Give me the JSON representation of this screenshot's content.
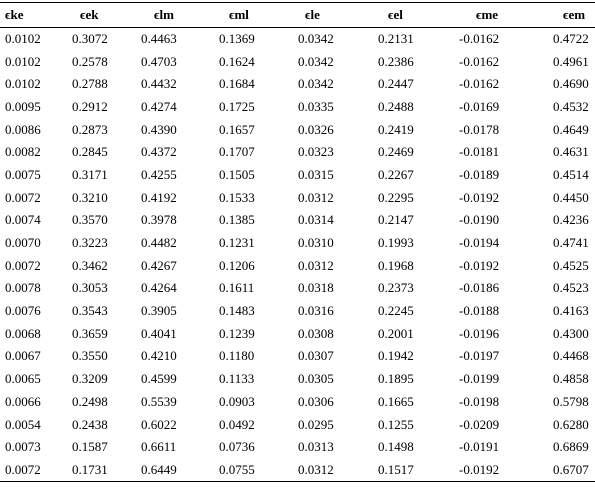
{
  "table": {
    "header": [
      "ϵke",
      "ϵek",
      "ϵlm",
      "ϵml",
      "ϵle",
      "ϵel",
      "ϵme",
      "ϵem"
    ],
    "rows": [
      [
        "0.0102",
        "0.3072",
        "0.4463",
        "0.1369",
        "0.0342",
        "0.2131",
        "-0.0162",
        "0.4722"
      ],
      [
        "0.0102",
        "0.2578",
        "0.4703",
        "0.1624",
        "0.0342",
        "0.2386",
        "-0.0162",
        "0.4961"
      ],
      [
        "0.0102",
        "0.2788",
        "0.4432",
        "0.1684",
        "0.0342",
        "0.2447",
        "-0.0162",
        "0.4690"
      ],
      [
        "0.0095",
        "0.2912",
        "0.4274",
        "0.1725",
        "0.0335",
        "0.2488",
        "-0.0169",
        "0.4532"
      ],
      [
        "0.0086",
        "0.2873",
        "0.4390",
        "0.1657",
        "0.0326",
        "0.2419",
        "-0.0178",
        "0.4649"
      ],
      [
        "0.0082",
        "0.2845",
        "0.4372",
        "0.1707",
        "0.0323",
        "0.2469",
        "-0.0181",
        "0.4631"
      ],
      [
        "0.0075",
        "0.3171",
        "0.4255",
        "0.1505",
        "0.0315",
        "0.2267",
        "-0.0189",
        "0.4514"
      ],
      [
        "0.0072",
        "0.3210",
        "0.4192",
        "0.1533",
        "0.0312",
        "0.2295",
        "-0.0192",
        "0.4450"
      ],
      [
        "0.0074",
        "0.3570",
        "0.3978",
        "0.1385",
        "0.0314",
        "0.2147",
        "-0.0190",
        "0.4236"
      ],
      [
        "0.0070",
        "0.3223",
        "0.4482",
        "0.1231",
        "0.0310",
        "0.1993",
        "-0.0194",
        "0.4741"
      ],
      [
        "0.0072",
        "0.3462",
        "0.4267",
        "0.1206",
        "0.0312",
        "0.1968",
        "-0.0192",
        "0.4525"
      ],
      [
        "0.0078",
        "0.3053",
        "0.4264",
        "0.1611",
        "0.0318",
        "0.2373",
        "-0.0186",
        "0.4523"
      ],
      [
        "0.0076",
        "0.3543",
        "0.3905",
        "0.1483",
        "0.0316",
        "0.2245",
        "-0.0188",
        "0.4163"
      ],
      [
        "0.0068",
        "0.3659",
        "0.4041",
        "0.1239",
        "0.0308",
        "0.2001",
        "-0.0196",
        "0.4300"
      ],
      [
        "0.0067",
        "0.3550",
        "0.4210",
        "0.1180",
        "0.0307",
        "0.1942",
        "-0.0197",
        "0.4468"
      ],
      [
        "0.0065",
        "0.3209",
        "0.4599",
        "0.1133",
        "0.0305",
        "0.1895",
        "-0.0199",
        "0.4858"
      ],
      [
        "0.0066",
        "0.2498",
        "0.5539",
        "0.0903",
        "0.0306",
        "0.1665",
        "-0.0198",
        "0.5798"
      ],
      [
        "0.0054",
        "0.2438",
        "0.6022",
        "0.0492",
        "0.0295",
        "0.1255",
        "-0.0209",
        "0.6280"
      ],
      [
        "0.0073",
        "0.1587",
        "0.6611",
        "0.0736",
        "0.0313",
        "0.1498",
        "-0.0191",
        "0.6869"
      ],
      [
        "0.0072",
        "0.1731",
        "0.6449",
        "0.0755",
        "0.0312",
        "0.1517",
        "-0.0192",
        "0.6707"
      ]
    ]
  }
}
